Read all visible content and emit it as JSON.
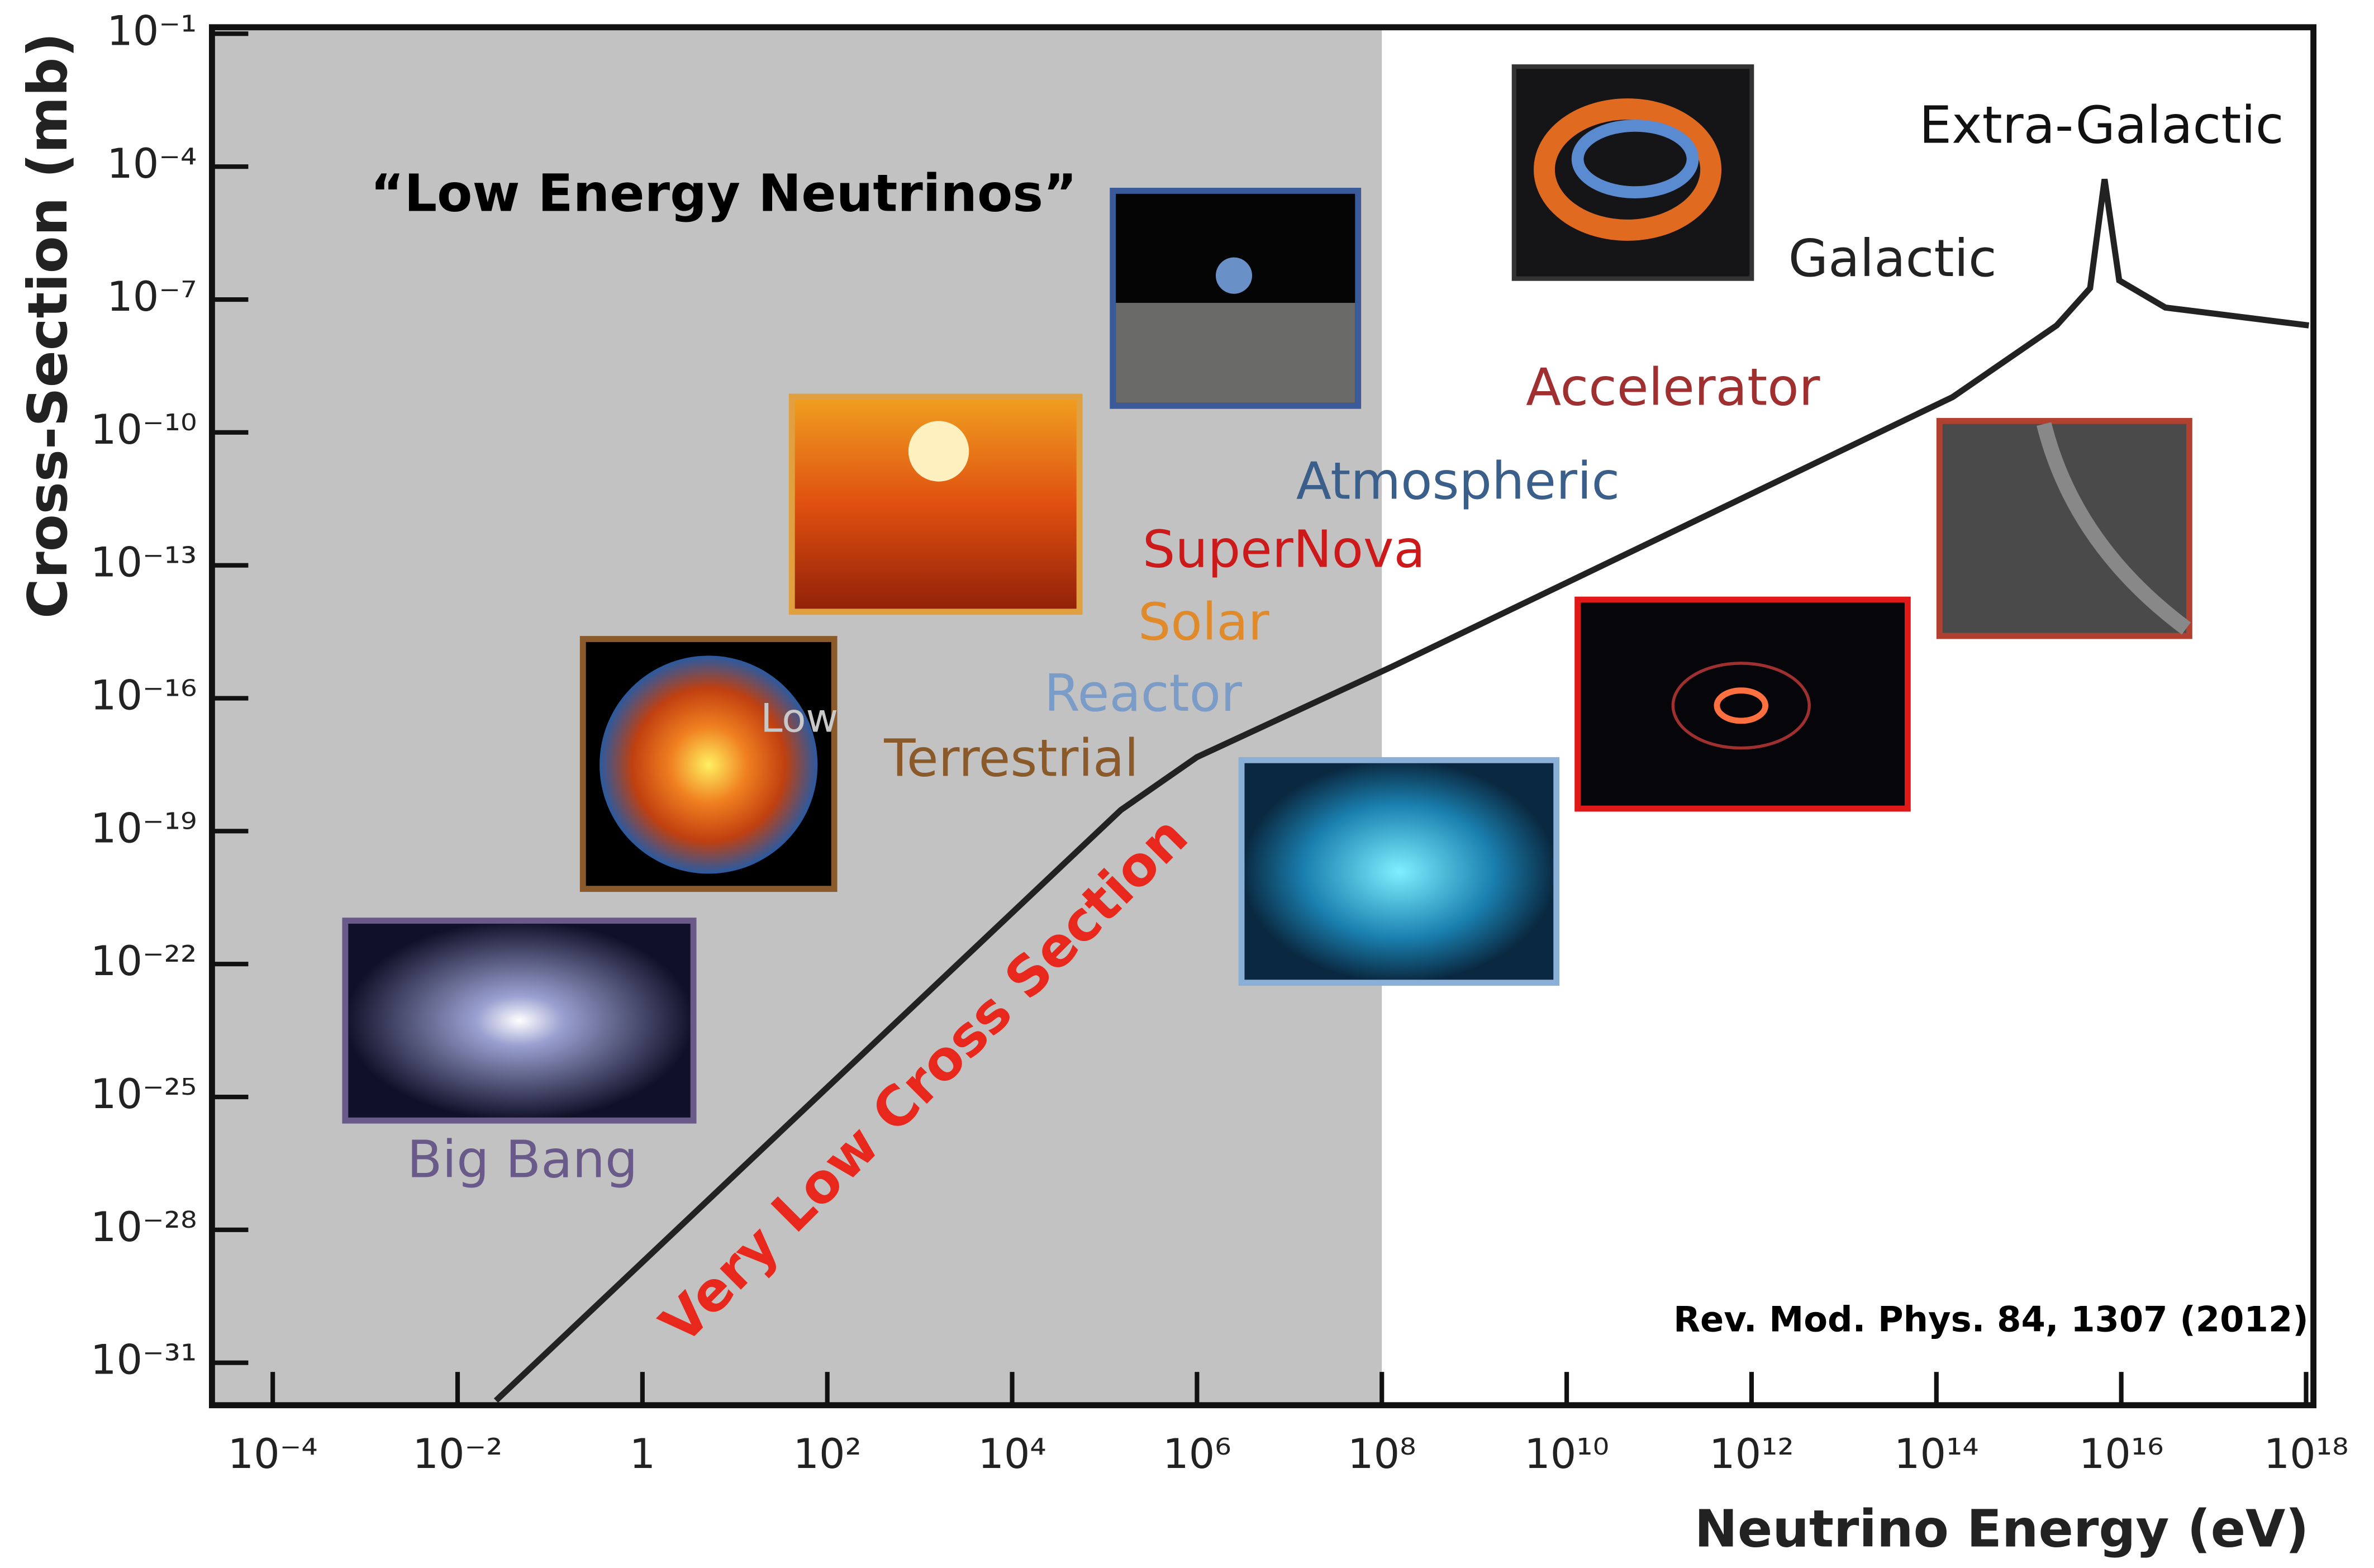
{
  "chart_data": {
    "type": "line",
    "xlabel": "Neutrino Energy (eV)",
    "ylabel": "Cross-Section (mb)",
    "xscale": "log",
    "yscale": "log",
    "xlim": [
      2.2e-05,
      1200000000000000000
    ],
    "ylim": [
      1.1e-32,
      0.14
    ],
    "xticks": [
      {
        "value": 0.0001,
        "label": "10⁻⁴"
      },
      {
        "value": 0.01,
        "label": "10⁻²"
      },
      1,
      {
        "value": 100,
        "label": "10²"
      },
      {
        "value": 10000,
        "label": "10⁴"
      },
      {
        "value": 1000000,
        "label": "10⁶"
      },
      {
        "value": 100000000,
        "label": "10⁸"
      },
      {
        "value": 10000000000,
        "label": "10¹⁰"
      },
      {
        "value": 1000000000000,
        "label": "10¹²"
      },
      {
        "value": 100000000000000,
        "label": "10¹⁴"
      },
      {
        "value": 10000000000000000,
        "label": "10¹⁶"
      },
      {
        "value": 1000000000000000000,
        "label": "10¹⁸"
      }
    ],
    "yticks": [
      {
        "value": 0.1,
        "label": "10⁻¹"
      },
      {
        "value": 0.0001,
        "label": "10⁻⁴"
      },
      {
        "value": 1e-07,
        "label": "10⁻⁷"
      },
      {
        "value": 1e-10,
        "label": "10⁻¹⁰"
      },
      {
        "value": 1e-13,
        "label": "10⁻¹³"
      },
      {
        "value": 1e-16,
        "label": "10⁻¹⁶"
      },
      {
        "value": 1e-19,
        "label": "10⁻¹⁹"
      },
      {
        "value": 1e-22,
        "label": "10⁻²²"
      },
      {
        "value": 1e-25,
        "label": "10⁻²⁵"
      },
      {
        "value": 1e-28,
        "label": "10⁻²⁸"
      },
      {
        "value": 1e-31,
        "label": "10⁻³¹"
      }
    ],
    "shaded_xmax": 100000000,
    "x": [
      0.026,
      150000,
      1000000,
      130000000,
      150000000000000,
      2000000000000000,
      4600000000000000,
      6600000000000000,
      9500000000000000,
      30000000000000000,
      1070000000000000000
    ],
    "values": [
      1.4e-32,
      3e-19,
      4.7e-18,
      5.2e-16,
      6.3e-10,
      2.6e-08,
      1.8e-07,
      5.2e-05,
      2.7e-07,
      6.6e-08,
      2.6e-08
    ],
    "color": "#222222",
    "annotations": [
      {
        "text": "“Low Energy Neutrinos”",
        "color": "#000000"
      },
      {
        "text": "Big Bang",
        "color": "#6a5a8a"
      },
      {
        "text": "Low",
        "color": "#c8c8c8"
      },
      {
        "text": "Terrestrial",
        "color": "#8b5a2b"
      },
      {
        "text": "Reactor",
        "color": "#7a9cc6"
      },
      {
        "text": "Solar",
        "color": "#e08a2a"
      },
      {
        "text": "SuperNova",
        "color": "#cc1a1a"
      },
      {
        "text": "Atmospheric",
        "color": "#3a5f8a"
      },
      {
        "text": "Accelerator",
        "color": "#a03030"
      },
      {
        "text": "Galactic",
        "color": "#222222"
      },
      {
        "text": "Extra-Galactic",
        "color": "#111111"
      },
      {
        "text": "Very Low Cross Section",
        "color": "#e8281c"
      },
      {
        "text": "Rev. Mod. Phys. 84, 1307 (2012)",
        "color": "#000000"
      }
    ]
  }
}
